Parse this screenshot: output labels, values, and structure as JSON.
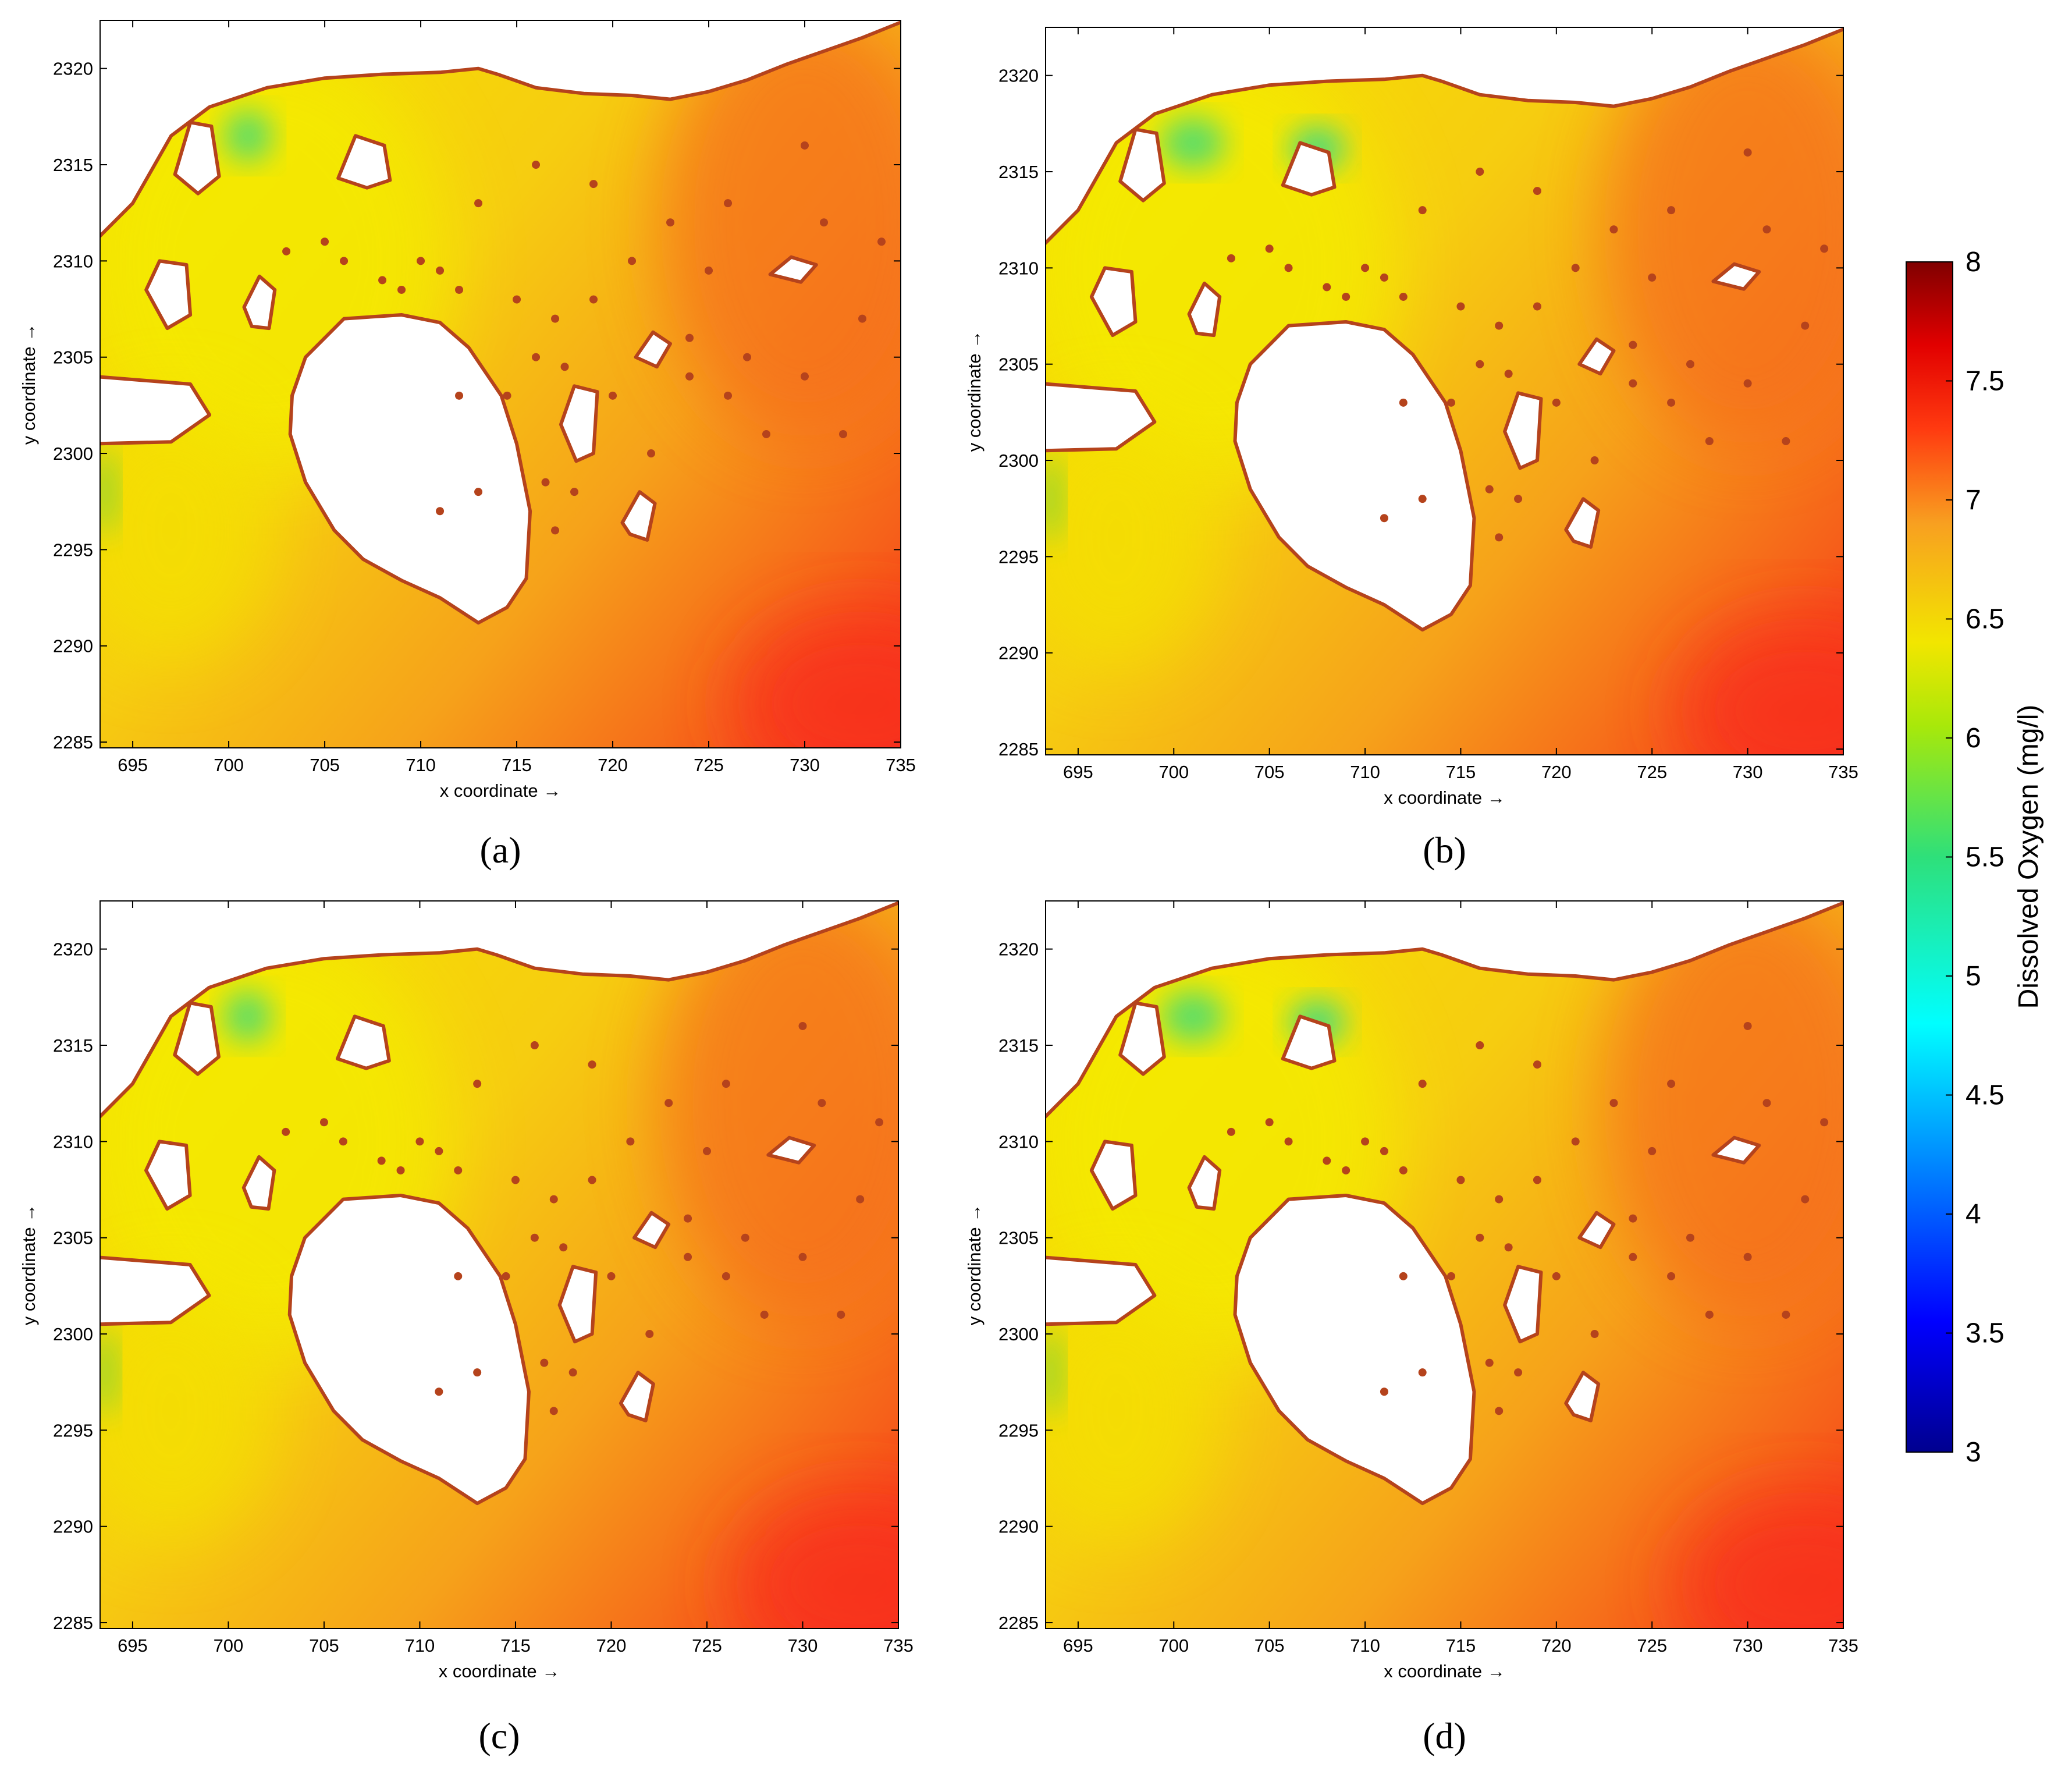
{
  "chart_data": {
    "type": "heatmap",
    "shared_axes": {
      "xlabel": "x coordinate →",
      "ylabel": "y coordinate →",
      "xlim": [
        693.3,
        735
      ],
      "ylim": [
        2284.7,
        2322.5
      ],
      "xticks": [
        "695",
        "700",
        "705",
        "710",
        "715",
        "720",
        "725",
        "730",
        "735"
      ],
      "yticks": [
        "2285",
        "2290",
        "2295",
        "2300",
        "2305",
        "2310",
        "2315",
        "2320"
      ]
    },
    "colorbar": {
      "label": "Dissolved Oxygen (mg/l)",
      "range": [
        3,
        8
      ],
      "ticks": [
        "8",
        "7.5",
        "7",
        "6.5",
        "6",
        "5.5",
        "5",
        "4.5",
        "4",
        "3.5",
        "3"
      ],
      "colormap": "jet"
    },
    "panels": [
      {
        "label": "(a)",
        "green_intensity": 0.8
      },
      {
        "label": "(b)",
        "green_intensity": 1.0
      },
      {
        "label": "(c)",
        "green_intensity": 0.8
      },
      {
        "label": "(d)",
        "green_intensity": 1.0
      }
    ]
  },
  "colors": {
    "coastline": "#b5431c",
    "land": "#ffffff",
    "field_low": "#f5e000",
    "field_mid": "#f6a21a",
    "field_high": "#f7301a"
  }
}
